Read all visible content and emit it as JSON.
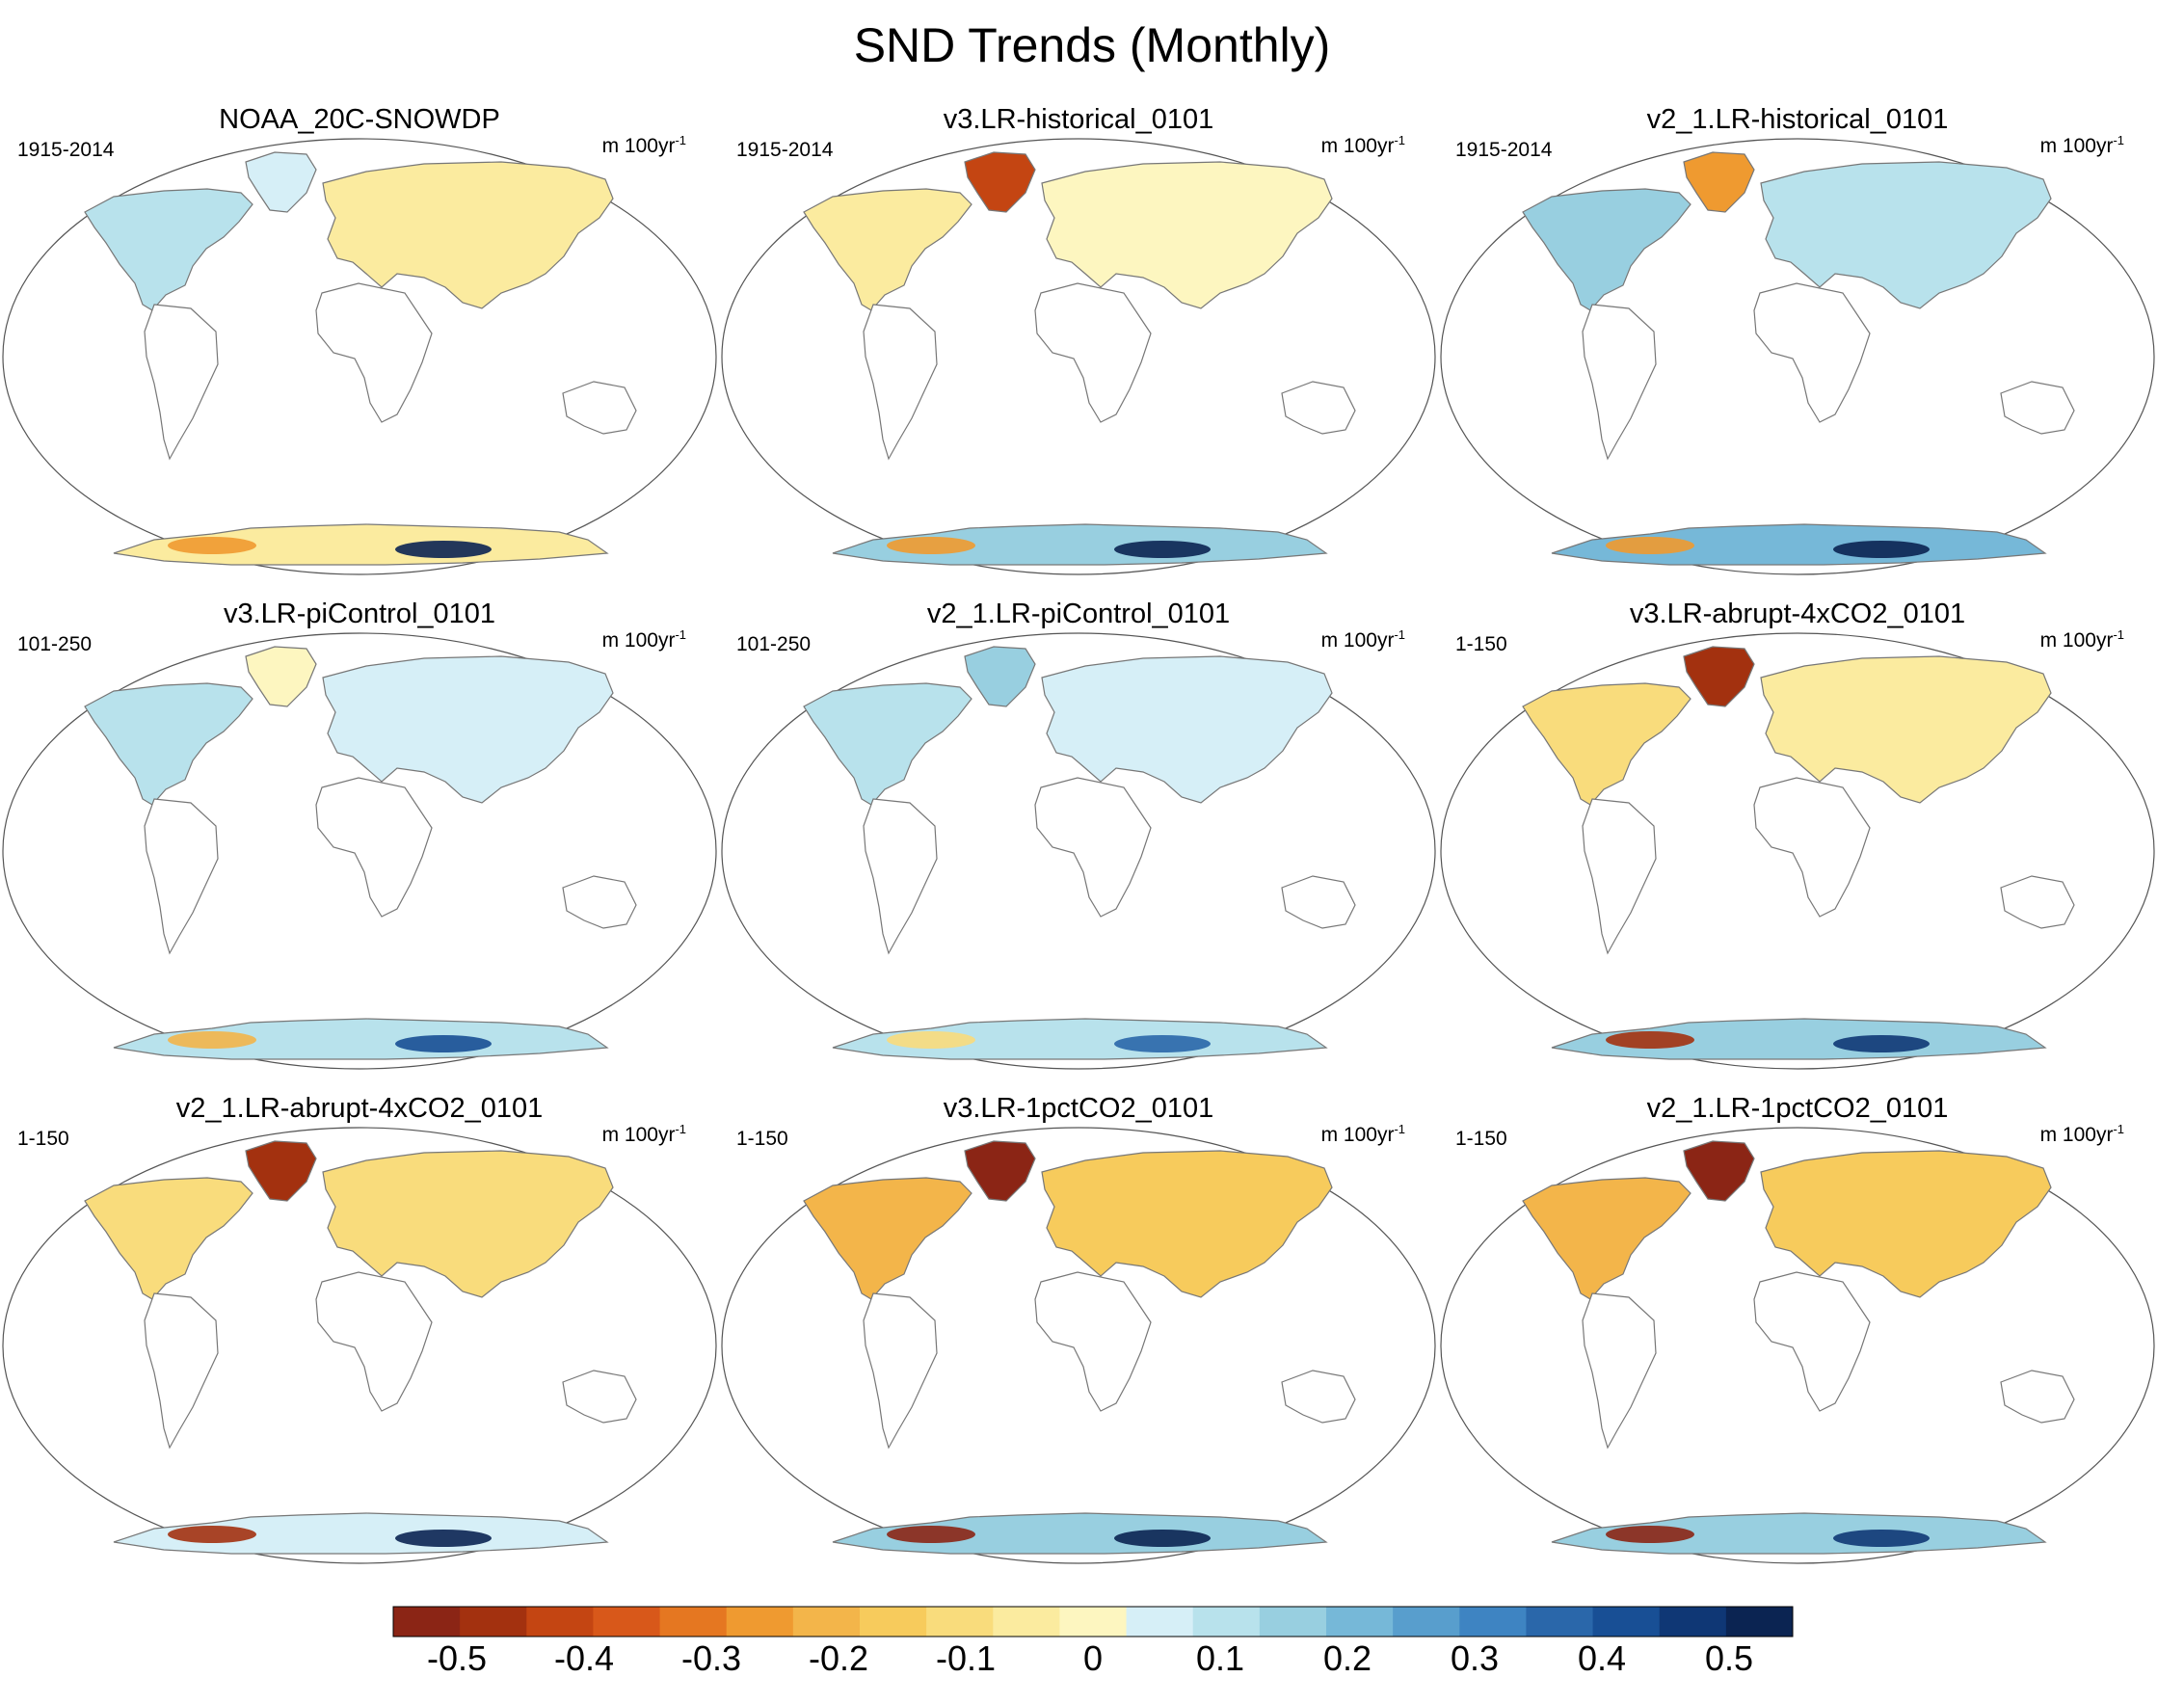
{
  "chart_data": {
    "type": "heatmap",
    "title": "SND Trends (Monthly)",
    "variable": "SND",
    "projection": "Robinson (global)",
    "units_base": "m 100yr",
    "units_exp": "-1",
    "colorbar": {
      "min": -0.55,
      "max": 0.55,
      "step": 0.05,
      "tick_values": [
        -0.5,
        -0.4,
        -0.3,
        -0.2,
        -0.1,
        0,
        0.1,
        0.2,
        0.3,
        0.4,
        0.5
      ],
      "tick_labels": [
        "-0.5",
        "-0.4",
        "-0.3",
        "-0.2",
        "-0.1",
        "0",
        "0.1",
        "0.2",
        "0.3",
        "0.4",
        "0.5"
      ],
      "colors": [
        "#8b2515",
        "#a3310f",
        "#c44512",
        "#d8581a",
        "#e57721",
        "#ef9a30",
        "#f3b54a",
        "#f7cb5c",
        "#f9dc7c",
        "#fbeb9f",
        "#fdf6c0",
        "#d6eff7",
        "#b8e2ec",
        "#98cfe0",
        "#76b8d8",
        "#589ecd",
        "#3e84c2",
        "#2a67aa",
        "#184f95",
        "#0f3775",
        "#0b2452"
      ]
    },
    "panels": [
      {
        "title": "NOAA_20C-SNOWDP",
        "period": "1915-2014",
        "north_america": 0.05,
        "greenland": 0.0,
        "eurasia": -0.08,
        "antarctica": -0.08,
        "antarctic_extremes": [
          0.5,
          -0.3
        ]
      },
      {
        "title": "v3.LR-historical_0101",
        "period": "1915-2014",
        "north_america": -0.08,
        "greenland": -0.45,
        "eurasia": -0.05,
        "antarctica": 0.12,
        "antarctic_extremes": [
          0.45,
          -0.3
        ]
      },
      {
        "title": "v2_1.LR-historical_0101",
        "period": "1915-2014",
        "north_america": 0.1,
        "greenland": -0.3,
        "eurasia": 0.05,
        "antarctica": 0.15,
        "antarctic_extremes": [
          0.5,
          -0.3
        ]
      },
      {
        "title": "v3.LR-piControl_0101",
        "period": "101-250",
        "north_america": 0.05,
        "greenland": -0.05,
        "eurasia": 0.02,
        "antarctica": 0.05,
        "antarctic_extremes": [
          0.35,
          -0.25
        ]
      },
      {
        "title": "v2_1.LR-piControl_0101",
        "period": "101-250",
        "north_america": 0.07,
        "greenland": 0.1,
        "eurasia": 0.04,
        "antarctica": 0.06,
        "antarctic_extremes": [
          0.3,
          -0.15
        ]
      },
      {
        "title": "v3.LR-abrupt-4xCO2_0101",
        "period": "1-150",
        "north_america": -0.15,
        "greenland": -0.5,
        "eurasia": -0.1,
        "antarctica": 0.1,
        "antarctic_extremes": [
          0.4,
          -0.5
        ]
      },
      {
        "title": "v2_1.LR-abrupt-4xCO2_0101",
        "period": "1-150",
        "north_america": -0.15,
        "greenland": -0.5,
        "eurasia": -0.12,
        "antarctica": 0.0,
        "antarctic_extremes": [
          0.55,
          -0.5
        ]
      },
      {
        "title": "v3.LR-1pctCO2_0101",
        "period": "1-150",
        "north_america": -0.25,
        "greenland": -0.55,
        "eurasia": -0.18,
        "antarctica": 0.12,
        "antarctic_extremes": [
          0.45,
          -0.55
        ]
      },
      {
        "title": "v2_1.LR-1pctCO2_0101",
        "period": "1-150",
        "north_america": -0.25,
        "greenland": -0.55,
        "eurasia": -0.18,
        "antarctica": 0.1,
        "antarctic_extremes": [
          0.4,
          -0.55
        ]
      }
    ]
  }
}
